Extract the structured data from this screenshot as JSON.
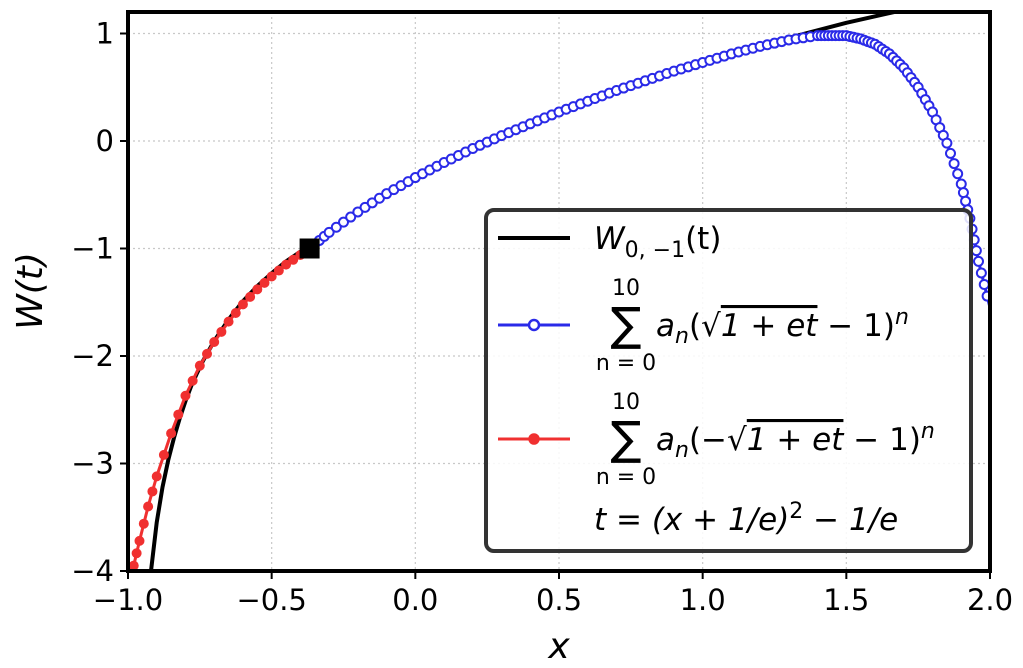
{
  "chart_data": {
    "type": "line",
    "xlabel": "x",
    "ylabel": "W(t)",
    "xlim": [
      -1.0,
      2.0
    ],
    "ylim": [
      -4,
      1.2
    ],
    "x_ticks": [
      -1.0,
      -0.5,
      0.0,
      0.5,
      1.0,
      1.5,
      2.0
    ],
    "x_tick_labels": [
      "−1.0",
      "−0.5",
      "0.0",
      "0.5",
      "1.0",
      "1.5",
      "2.0"
    ],
    "y_ticks": [
      1,
      0,
      -1,
      -2,
      -3,
      -4
    ],
    "y_tick_labels": [
      "1",
      "0",
      "−1",
      "−2",
      "−3",
      "−4"
    ],
    "grid": true,
    "legend_position": "lower-right",
    "series": [
      {
        "name": "W0,-1(t)",
        "color": "#000000",
        "marker": "none",
        "x": [
          -0.92,
          -0.9,
          -0.88,
          -0.86,
          -0.84,
          -0.82,
          -0.8,
          -0.78,
          -0.76,
          -0.74,
          -0.7,
          -0.65,
          -0.6,
          -0.55,
          -0.5,
          -0.45,
          -0.4,
          -0.368,
          -0.3,
          -0.2,
          -0.1,
          0.0,
          0.1,
          0.2,
          0.3,
          0.4,
          0.5,
          0.6,
          0.7,
          0.8,
          0.9,
          1.0,
          1.1,
          1.2,
          1.3,
          1.4,
          1.5,
          1.6,
          1.7,
          1.75
        ],
        "y": [
          -4.0,
          -3.55,
          -3.22,
          -2.97,
          -2.76,
          -2.58,
          -2.42,
          -2.28,
          -2.16,
          -2.05,
          -1.86,
          -1.66,
          -1.49,
          -1.35,
          -1.23,
          -1.12,
          -1.03,
          -1.0,
          -0.85,
          -0.66,
          -0.49,
          -0.34,
          -0.2,
          -0.07,
          0.05,
          0.16,
          0.27,
          0.37,
          0.47,
          0.56,
          0.65,
          0.73,
          0.81,
          0.89,
          0.96,
          1.03,
          1.1,
          1.16,
          1.22,
          1.25
        ]
      },
      {
        "name": "sum_{n=0}^{10} a_n(sqrt(1+et)-1)^n",
        "color": "#2a2ae8",
        "marker": "open-circle",
        "x": [
          -0.368,
          -0.3,
          -0.2,
          -0.1,
          0.0,
          0.1,
          0.2,
          0.3,
          0.4,
          0.5,
          0.6,
          0.7,
          0.8,
          0.9,
          1.0,
          1.1,
          1.2,
          1.3,
          1.4,
          1.45,
          1.5,
          1.55,
          1.6,
          1.65,
          1.7,
          1.75,
          1.8,
          1.85,
          1.9,
          1.93,
          1.96,
          2.0
        ],
        "y": [
          -1.0,
          -0.85,
          -0.66,
          -0.49,
          -0.34,
          -0.2,
          -0.07,
          0.05,
          0.16,
          0.27,
          0.37,
          0.47,
          0.56,
          0.65,
          0.73,
          0.81,
          0.88,
          0.94,
          0.98,
          0.98,
          0.98,
          0.95,
          0.9,
          0.81,
          0.68,
          0.5,
          0.27,
          -0.02,
          -0.4,
          -0.72,
          -1.12,
          -1.55
        ]
      },
      {
        "name": "sum_{n=0}^{10} a_n(-sqrt(1+et)-1)^n",
        "color": "#f03030",
        "marker": "filled-circle",
        "x": [
          -0.368,
          -0.4,
          -0.45,
          -0.5,
          -0.55,
          -0.6,
          -0.65,
          -0.7,
          -0.75,
          -0.8,
          -0.85,
          -0.9,
          -0.93,
          -0.96,
          -0.98,
          -1.0
        ],
        "y": [
          -1.0,
          -1.06,
          -1.15,
          -1.26,
          -1.38,
          -1.52,
          -1.68,
          -1.87,
          -2.09,
          -2.37,
          -2.72,
          -3.12,
          -3.4,
          -3.72,
          -3.95,
          -4.2
        ]
      }
    ],
    "marker_point": {
      "x": -0.368,
      "y": -1.0,
      "shape": "square",
      "color": "#000000"
    },
    "legend": {
      "w_symbol": "W",
      "w_subscript": "0, −1",
      "w_arg": "(t)",
      "sum_symbol": "∑",
      "sum_upper": "10",
      "sum_lower": "n = 0",
      "blue_term_head": "a",
      "blue_term_sub": "n",
      "blue_term_open": "(√",
      "radicand": "1 + et",
      "term_tail": " − 1)",
      "term_power": "n",
      "red_term_open": "(−√",
      "t_definition": "t = (x + 1/e)",
      "t_definition_power": "2",
      "t_definition_tail": " − 1/e"
    }
  }
}
